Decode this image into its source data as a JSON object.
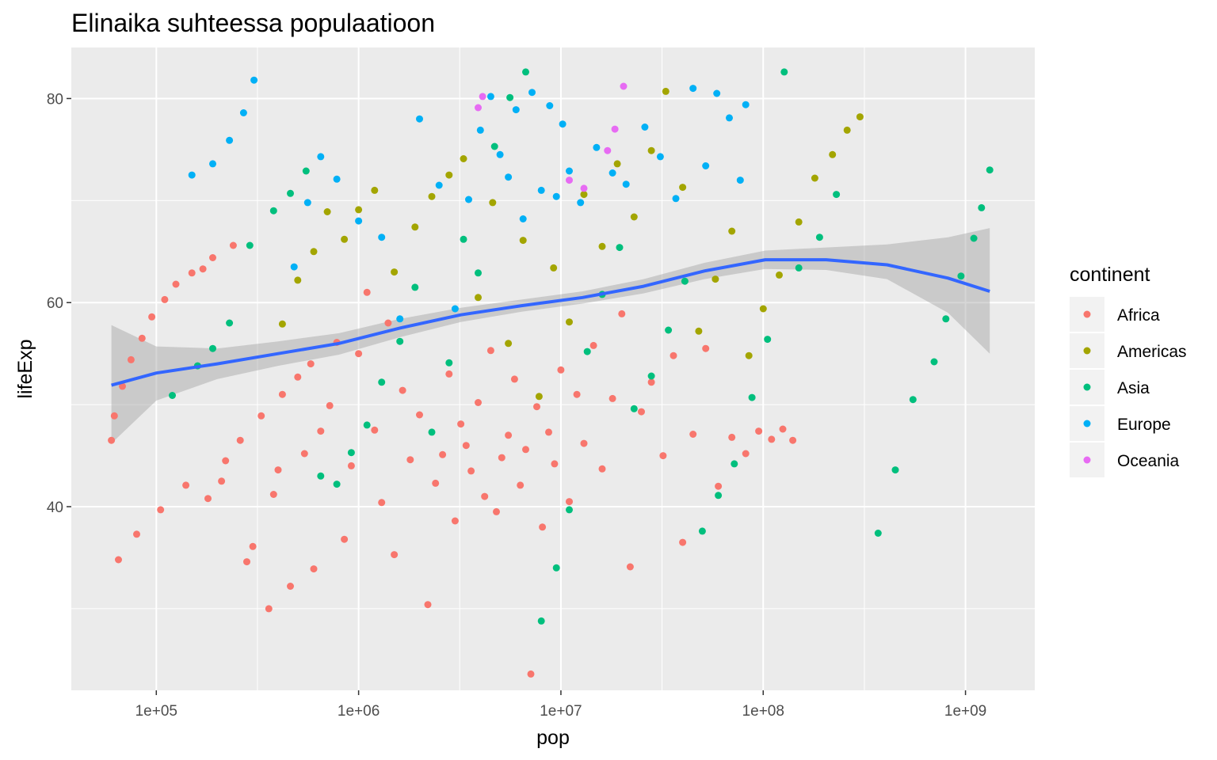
{
  "chart_data": {
    "type": "scatter",
    "title": "Elinaika suhteessa populaatioon",
    "xlabel": "pop",
    "ylabel": "lifeExp",
    "x_scale": "log10",
    "xlim": [
      38000,
      2200000000
    ],
    "ylim": [
      22,
      85
    ],
    "x_ticks": [
      100000,
      1000000,
      10000000,
      100000000,
      1000000000
    ],
    "x_tick_labels": [
      "1e+05",
      "1e+06",
      "1e+07",
      "1e+08",
      "1e+09"
    ],
    "y_ticks": [
      40,
      60,
      80
    ],
    "y_tick_labels": [
      "40",
      "60",
      "80"
    ],
    "grid": true,
    "panel_background": "#ebebeb",
    "legend": {
      "title": "continent",
      "position": "right",
      "entries": [
        "Africa",
        "Americas",
        "Asia",
        "Europe",
        "Oceania"
      ]
    },
    "colors": {
      "Africa": "#f8766d",
      "Americas": "#a3a500",
      "Asia": "#00bf7d",
      "Europe": "#00b0f6",
      "Oceania": "#e76bf3",
      "smooth": "#3366ff",
      "ribbon": "#999999"
    },
    "series": [
      {
        "name": "Africa",
        "points": [
          [
            60000,
            46.5
          ],
          [
            62000,
            48.9
          ],
          [
            65000,
            34.8
          ],
          [
            68000,
            51.8
          ],
          [
            75000,
            54.4
          ],
          [
            80000,
            37.3
          ],
          [
            85000,
            56.5
          ],
          [
            95000,
            58.6
          ],
          [
            105000,
            39.7
          ],
          [
            110000,
            60.3
          ],
          [
            125000,
            61.8
          ],
          [
            140000,
            42.1
          ],
          [
            150000,
            62.9
          ],
          [
            170000,
            63.3
          ],
          [
            180000,
            40.8
          ],
          [
            190000,
            64.4
          ],
          [
            210000,
            42.5
          ],
          [
            220000,
            44.5
          ],
          [
            240000,
            65.6
          ],
          [
            260000,
            46.5
          ],
          [
            280000,
            34.6
          ],
          [
            300000,
            36.1
          ],
          [
            330000,
            48.9
          ],
          [
            360000,
            30.0
          ],
          [
            380000,
            41.2
          ],
          [
            400000,
            43.6
          ],
          [
            420000,
            51.0
          ],
          [
            460000,
            32.2
          ],
          [
            500000,
            52.7
          ],
          [
            540000,
            45.2
          ],
          [
            580000,
            54.0
          ],
          [
            600000,
            33.9
          ],
          [
            650000,
            47.4
          ],
          [
            720000,
            49.9
          ],
          [
            780000,
            56.1
          ],
          [
            850000,
            36.8
          ],
          [
            920000,
            44.0
          ],
          [
            1000000,
            55.0
          ],
          [
            1100000,
            61.0
          ],
          [
            1200000,
            47.5
          ],
          [
            1300000,
            40.4
          ],
          [
            1400000,
            58.0
          ],
          [
            1500000,
            35.3
          ],
          [
            1650000,
            51.4
          ],
          [
            1800000,
            44.6
          ],
          [
            2000000,
            49.0
          ],
          [
            2200000,
            30.4
          ],
          [
            2400000,
            42.3
          ],
          [
            2600000,
            45.1
          ],
          [
            2800000,
            53.0
          ],
          [
            3000000,
            38.6
          ],
          [
            3200000,
            48.1
          ],
          [
            3400000,
            46.0
          ],
          [
            3600000,
            43.5
          ],
          [
            3900000,
            50.2
          ],
          [
            4200000,
            41.0
          ],
          [
            4500000,
            55.3
          ],
          [
            4800000,
            39.5
          ],
          [
            5100000,
            44.8
          ],
          [
            5500000,
            47.0
          ],
          [
            5900000,
            52.5
          ],
          [
            6300000,
            42.1
          ],
          [
            6700000,
            45.6
          ],
          [
            7100000,
            23.6
          ],
          [
            7600000,
            49.8
          ],
          [
            8100000,
            38.0
          ],
          [
            8700000,
            47.3
          ],
          [
            9300000,
            44.2
          ],
          [
            10000000,
            53.4
          ],
          [
            11000000,
            40.5
          ],
          [
            12000000,
            51.0
          ],
          [
            13000000,
            46.2
          ],
          [
            14500000,
            55.8
          ],
          [
            16000000,
            43.7
          ],
          [
            18000000,
            50.6
          ],
          [
            20000000,
            58.9
          ],
          [
            22000000,
            34.1
          ],
          [
            25000000,
            49.3
          ],
          [
            28000000,
            52.2
          ],
          [
            32000000,
            45.0
          ],
          [
            36000000,
            54.8
          ],
          [
            40000000,
            36.5
          ],
          [
            45000000,
            47.1
          ],
          [
            52000000,
            55.5
          ],
          [
            60000000,
            42.0
          ],
          [
            70000000,
            46.8
          ],
          [
            82000000,
            45.2
          ],
          [
            95000000,
            47.4
          ],
          [
            110000000,
            46.6
          ],
          [
            125000000,
            47.6
          ],
          [
            140000000,
            46.5
          ]
        ]
      },
      {
        "name": "Americas",
        "points": [
          [
            420000,
            57.9
          ],
          [
            500000,
            62.2
          ],
          [
            600000,
            65.0
          ],
          [
            700000,
            68.9
          ],
          [
            850000,
            66.2
          ],
          [
            1000000,
            69.1
          ],
          [
            1200000,
            71.0
          ],
          [
            1500000,
            63.0
          ],
          [
            1900000,
            67.4
          ],
          [
            2300000,
            70.4
          ],
          [
            2800000,
            72.5
          ],
          [
            3300000,
            74.1
          ],
          [
            3900000,
            60.5
          ],
          [
            4600000,
            69.8
          ],
          [
            5500000,
            56.0
          ],
          [
            6500000,
            66.1
          ],
          [
            7800000,
            50.8
          ],
          [
            9200000,
            63.4
          ],
          [
            11000000,
            58.1
          ],
          [
            13000000,
            70.6
          ],
          [
            16000000,
            65.5
          ],
          [
            19000000,
            73.6
          ],
          [
            23000000,
            68.4
          ],
          [
            28000000,
            74.9
          ],
          [
            33000000,
            80.7
          ],
          [
            40000000,
            71.3
          ],
          [
            48000000,
            57.2
          ],
          [
            58000000,
            62.3
          ],
          [
            70000000,
            67.0
          ],
          [
            85000000,
            54.8
          ],
          [
            100000000,
            59.4
          ],
          [
            120000000,
            62.7
          ],
          [
            150000000,
            67.9
          ],
          [
            180000000,
            72.2
          ],
          [
            220000000,
            74.5
          ],
          [
            260000000,
            76.9
          ],
          [
            301000000,
            78.2
          ]
        ]
      },
      {
        "name": "Asia",
        "points": [
          [
            120000,
            50.9
          ],
          [
            160000,
            53.8
          ],
          [
            190000,
            55.5
          ],
          [
            230000,
            58.0
          ],
          [
            290000,
            65.6
          ],
          [
            380000,
            69.0
          ],
          [
            460000,
            70.7
          ],
          [
            550000,
            72.9
          ],
          [
            650000,
            43.0
          ],
          [
            780000,
            42.2
          ],
          [
            920000,
            45.3
          ],
          [
            1100000,
            48.0
          ],
          [
            1300000,
            52.2
          ],
          [
            1600000,
            56.2
          ],
          [
            1900000,
            61.5
          ],
          [
            2300000,
            47.3
          ],
          [
            2800000,
            54.1
          ],
          [
            3300000,
            66.2
          ],
          [
            3900000,
            62.9
          ],
          [
            4700000,
            75.3
          ],
          [
            5600000,
            80.1
          ],
          [
            6700000,
            82.6
          ],
          [
            8000000,
            28.8
          ],
          [
            9500000,
            34.0
          ],
          [
            11000000,
            39.7
          ],
          [
            13500000,
            55.2
          ],
          [
            16000000,
            60.8
          ],
          [
            19500000,
            65.4
          ],
          [
            23000000,
            49.6
          ],
          [
            28000000,
            52.8
          ],
          [
            34000000,
            57.3
          ],
          [
            41000000,
            62.1
          ],
          [
            50000000,
            37.6
          ],
          [
            60000000,
            41.1
          ],
          [
            72000000,
            44.2
          ],
          [
            88000000,
            50.7
          ],
          [
            105000000,
            56.4
          ],
          [
            127000000,
            82.6
          ],
          [
            150000000,
            63.4
          ],
          [
            190000000,
            66.4
          ],
          [
            230000000,
            70.6
          ],
          [
            370000000,
            37.4
          ],
          [
            450000000,
            43.6
          ],
          [
            550000000,
            50.5
          ],
          [
            700000000,
            54.2
          ],
          [
            800000000,
            58.4
          ],
          [
            950000000,
            62.6
          ],
          [
            1100000000,
            66.3
          ],
          [
            1200000000,
            69.3
          ],
          [
            1318000000,
            73.0
          ]
        ]
      },
      {
        "name": "Europe",
        "points": [
          [
            150000,
            72.5
          ],
          [
            190000,
            73.6
          ],
          [
            230000,
            75.9
          ],
          [
            270000,
            78.6
          ],
          [
            304000,
            81.8
          ],
          [
            480000,
            63.5
          ],
          [
            560000,
            69.8
          ],
          [
            650000,
            74.3
          ],
          [
            780000,
            72.1
          ],
          [
            1000000,
            68.0
          ],
          [
            1300000,
            66.4
          ],
          [
            1600000,
            58.4
          ],
          [
            2000000,
            78.0
          ],
          [
            2500000,
            71.5
          ],
          [
            3000000,
            59.4
          ],
          [
            3500000,
            70.1
          ],
          [
            4000000,
            76.9
          ],
          [
            4500000,
            80.2
          ],
          [
            5000000,
            74.5
          ],
          [
            5500000,
            72.3
          ],
          [
            6000000,
            78.9
          ],
          [
            6500000,
            68.2
          ],
          [
            7200000,
            80.6
          ],
          [
            8000000,
            71.0
          ],
          [
            8800000,
            79.3
          ],
          [
            9500000,
            70.4
          ],
          [
            10200000,
            77.5
          ],
          [
            11000000,
            72.9
          ],
          [
            12500000,
            69.8
          ],
          [
            15000000,
            75.2
          ],
          [
            18000000,
            72.7
          ],
          [
            21000000,
            71.6
          ],
          [
            26000000,
            77.2
          ],
          [
            31000000,
            74.3
          ],
          [
            37000000,
            70.2
          ],
          [
            45000000,
            81.0
          ],
          [
            52000000,
            73.4
          ],
          [
            59000000,
            80.5
          ],
          [
            68000000,
            78.1
          ],
          [
            77000000,
            72.0
          ],
          [
            82000000,
            79.4
          ]
        ]
      },
      {
        "name": "Oceania",
        "points": [
          [
            3900000,
            79.1
          ],
          [
            4100000,
            80.2
          ],
          [
            11000000,
            72.0
          ],
          [
            13000000,
            71.2
          ],
          [
            17000000,
            74.9
          ],
          [
            18500000,
            77.0
          ],
          [
            20400000,
            81.2
          ]
        ]
      }
    ],
    "smooth": {
      "method": "loess",
      "x": [
        60000,
        100000,
        200000,
        400000,
        800000,
        1600000,
        3200000,
        6400000,
        12800000,
        25600000,
        51200000,
        102400000,
        204800000,
        409600000,
        819200000,
        1318000000
      ],
      "y": [
        51.9,
        53.1,
        54.0,
        55.0,
        56.0,
        57.5,
        58.8,
        59.7,
        60.5,
        61.6,
        63.1,
        64.2,
        64.2,
        63.7,
        62.4,
        61.1
      ],
      "ymin": [
        46.2,
        50.4,
        52.5,
        53.8,
        54.9,
        56.6,
        58.1,
        59.1,
        59.9,
        60.9,
        62.3,
        63.3,
        63.2,
        62.3,
        59.0,
        55.0
      ],
      "ymax": [
        57.8,
        55.7,
        55.5,
        56.2,
        57.0,
        58.4,
        59.5,
        60.3,
        61.1,
        62.3,
        63.9,
        65.1,
        65.4,
        65.7,
        66.4,
        67.3
      ]
    }
  }
}
